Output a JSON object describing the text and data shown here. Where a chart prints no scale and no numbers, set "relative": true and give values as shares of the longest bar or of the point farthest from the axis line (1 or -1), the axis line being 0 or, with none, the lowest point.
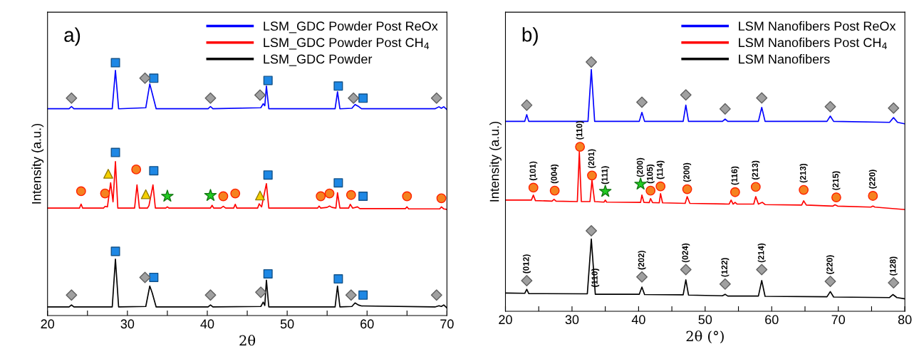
{
  "chart_data": [
    {
      "type": "line",
      "relative": true,
      "xlabel": "2θ",
      "ylabel": "Intensity (a.u.)",
      "annotations": [
        "a)"
      ],
      "legend": "top right",
      "grid": false,
      "tick_labels": "x",
      "xlim": [
        20,
        70
      ],
      "xticks": [
        20,
        {
          "value": 25,
          "label": null
        },
        30,
        {
          "value": 35,
          "label": null
        },
        40,
        {
          "value": 45,
          "label": null
        },
        50,
        {
          "value": 55,
          "label": null
        },
        60,
        {
          "value": 65,
          "label": null
        },
        70
      ],
      "series": [
        {
          "name": "LSM_GDC Powder Post ReOx",
          "color": "#0000ff",
          "x": [
            20,
            22.7,
            23,
            23.3,
            28.1,
            28.5,
            28.9,
            32.3,
            32.8,
            33.1,
            33.6,
            40.1,
            40.4,
            40.7,
            46.7,
            47.0,
            47.2,
            47.4,
            47.7,
            56.0,
            56.3,
            56.6,
            58.1,
            58.5,
            58.9,
            59.3,
            68.5,
            69.0,
            69.3,
            69.6,
            70
          ],
          "values": [
            0.818,
            0.818,
            0.827,
            0.818,
            0.818,
            0.97,
            0.818,
            0.822,
            0.916,
            0.88,
            0.818,
            0.818,
            0.827,
            0.818,
            0.822,
            0.838,
            0.83,
            0.908,
            0.818,
            0.818,
            0.885,
            0.818,
            0.82,
            0.835,
            0.828,
            0.818,
            0.818,
            0.826,
            0.82,
            0.826,
            0.815
          ]
        },
        {
          "name": "LSM_GDC Powder Post CH$_{4}$",
          "color": "#ff0000",
          "x": [
            20,
            24.0,
            24.2,
            24.4,
            27.0,
            27.2,
            27.5,
            27.9,
            28.2,
            28.5,
            28.8,
            30.9,
            31.2,
            31.5,
            32.5,
            32.7,
            33.2,
            33.5,
            34.8,
            35.0,
            35.2,
            40.4,
            40.6,
            40.8,
            41.7,
            42.0,
            42.3,
            43.3,
            43.5,
            43.7,
            46.3,
            46.5,
            46.8,
            47.4,
            47.7,
            53.8,
            54.0,
            54.2,
            55.0,
            55.3,
            55.6,
            56.1,
            56.3,
            56.6,
            57.7,
            57.9,
            58.2,
            58.8,
            59.1,
            64.8,
            65.0,
            65.2,
            69.1,
            69.3,
            69.6,
            70
          ],
          "values": [
            0.425,
            0.425,
            0.441,
            0.425,
            0.425,
            0.432,
            0.43,
            0.525,
            0.45,
            0.609,
            0.425,
            0.425,
            0.517,
            0.425,
            0.425,
            0.435,
            0.517,
            0.425,
            0.425,
            0.43,
            0.425,
            0.425,
            0.436,
            0.425,
            0.425,
            0.432,
            0.425,
            0.425,
            0.44,
            0.425,
            0.425,
            0.442,
            0.43,
            0.522,
            0.425,
            0.425,
            0.433,
            0.425,
            0.428,
            0.433,
            0.428,
            0.425,
            0.486,
            0.425,
            0.425,
            0.44,
            0.425,
            0.43,
            0.423,
            0.423,
            0.43,
            0.422,
            0.422,
            0.43,
            0.422,
            0.42
          ]
        },
        {
          "name": "LSM_GDC Powder",
          "color": "#000000",
          "x": [
            20,
            22.7,
            23,
            23.3,
            28.1,
            28.5,
            28.9,
            32.3,
            32.8,
            33.1,
            33.6,
            40.1,
            40.4,
            40.7,
            46.7,
            47.0,
            47.2,
            47.4,
            47.7,
            56.0,
            56.3,
            56.6,
            58.1,
            58.5,
            58.9,
            59.3,
            68.5,
            69.0,
            69.3,
            69.6,
            70
          ],
          "values": [
            0.034,
            0.034,
            0.042,
            0.034,
            0.034,
            0.223,
            0.034,
            0.036,
            0.117,
            0.09,
            0.034,
            0.034,
            0.042,
            0.034,
            0.036,
            0.053,
            0.04,
            0.14,
            0.034,
            0.034,
            0.117,
            0.034,
            0.036,
            0.05,
            0.042,
            0.038,
            0.034,
            0.039,
            0.036,
            0.042,
            0.03
          ]
        },
        {
          "type": "scatter",
          "marker": "square",
          "color": "#1e88e5",
          "x": [
            28.5,
            33.3,
            47.6,
            56.4,
            59.5,
            28.5,
            33.3,
            47.6,
            56.4,
            59.5,
            28.5,
            33.3,
            47.6,
            56.4,
            59.5
          ],
          "values": [
            1.0,
            0.939,
            0.93,
            0.908,
            0.86,
            0.645,
            0.573,
            0.556,
            0.525,
            0.472,
            0.254,
            0.151,
            0.165,
            0.145,
            0.081
          ]
        },
        {
          "type": "scatter",
          "marker": "diamond",
          "color": "#a0a0a0",
          "x": [
            23,
            32.2,
            40.4,
            46.6,
            58.3,
            68.7,
            23,
            32.2,
            40.4,
            46.7,
            58,
            68.7
          ],
          "values": [
            0.86,
            0.939,
            0.86,
            0.872,
            0.86,
            0.86,
            0.081,
            0.151,
            0.081,
            0.092,
            0.081,
            0.081
          ]
        },
        {
          "type": "scatter",
          "marker": "circle",
          "color": "#f58220",
          "x": [
            24.2,
            27.2,
            31.1,
            42,
            43.5,
            54.2,
            55.3,
            58,
            65,
            69.3
          ],
          "values": [
            0.492,
            0.483,
            0.578,
            0.472,
            0.483,
            0.472,
            0.483,
            0.477,
            0.472,
            0.464
          ]
        },
        {
          "type": "scatter",
          "marker": "triangle",
          "color": "#f5d000",
          "x": [
            27.6,
            32.3,
            46.6
          ],
          "values": [
            0.561,
            0.48,
            0.475
          ]
        },
        {
          "type": "scatter",
          "marker": "star",
          "color": "#22cc22",
          "x": [
            35,
            40.4
          ],
          "values": [
            0.472,
            0.475
          ]
        }
      ]
    },
    {
      "type": "line",
      "relative": true,
      "xlabel": "2θ (°)",
      "ylabel": "Intensity (a.u.)",
      "legend": "top right",
      "grid": false,
      "tick_labels": "x",
      "xlim": [
        20,
        80
      ],
      "xticks": [
        20,
        {
          "value": 25,
          "label": null
        },
        30,
        {
          "value": 35,
          "label": null
        },
        40,
        {
          "value": 45,
          "label": null
        },
        50,
        {
          "value": 55,
          "label": null
        },
        60,
        {
          "value": 65,
          "label": null
        },
        70,
        {
          "value": 75,
          "label": null
        },
        80
      ],
      "annotations": [
        "b)",
        {
          "text": "(101)",
          "x": 24.2,
          "y": 0.496
        },
        {
          "text": "(004)",
          "x": 27.4,
          "y": 0.484
        },
        {
          "text": "(110)",
          "x": 31.2,
          "y": 0.66
        },
        {
          "text": "(201)",
          "x": 33,
          "y": 0.545
        },
        {
          "text": "(111)",
          "x": 35,
          "y": 0.481
        },
        {
          "text": "(200)",
          "x": 40.3,
          "y": 0.51
        },
        {
          "text": "(105)",
          "x": 41.8,
          "y": 0.484
        },
        {
          "text": "(114)",
          "x": 43.3,
          "y": 0.501
        },
        {
          "text": "(200)",
          "x": 47.3,
          "y": 0.49
        },
        {
          "text": "(116)",
          "x": 54.5,
          "y": 0.478
        },
        {
          "text": "(213)",
          "x": 57.6,
          "y": 0.499
        },
        {
          "text": "(213)",
          "x": 64.8,
          "y": 0.487
        },
        {
          "text": "(215)",
          "x": 69.7,
          "y": 0.457
        },
        {
          "text": "(220)",
          "x": 75.2,
          "y": 0.463
        },
        {
          "text": "(012)",
          "x": 23.2,
          "y": 0.123
        },
        {
          "text": "(110)",
          "x": 33.5,
          "y": 0.068
        },
        {
          "text": "(202)",
          "x": 40.5,
          "y": 0.138
        },
        {
          "text": "(024)",
          "x": 47.1,
          "y": 0.167
        },
        {
          "text": "(122)",
          "x": 53,
          "y": 0.109
        },
        {
          "text": "(214)",
          "x": 58.5,
          "y": 0.167
        },
        {
          "text": "(220)",
          "x": 68.8,
          "y": 0.12
        },
        {
          "text": "(128)",
          "x": 78.3,
          "y": 0.114
        }
      ],
      "series": [
        {
          "name": "LSM Nanofibers Post ReOx",
          "color": "#0000ff",
          "x": [
            20,
            22.9,
            23.2,
            23.5,
            32.4,
            32.9,
            33.4,
            40.1,
            40.5,
            40.9,
            46.7,
            47.1,
            47.5,
            52.6,
            53.0,
            53.4,
            58.0,
            58.5,
            59.0,
            68.3,
            68.8,
            69.3,
            77.7,
            78.3,
            78.9,
            80
          ],
          "values": [
            0.762,
            0.762,
            0.789,
            0.762,
            0.762,
            0.97,
            0.762,
            0.762,
            0.798,
            0.762,
            0.762,
            0.827,
            0.762,
            0.762,
            0.771,
            0.762,
            0.762,
            0.818,
            0.762,
            0.762,
            0.783,
            0.762,
            0.758,
            0.777,
            0.758,
            0.752
          ]
        },
        {
          "name": "LSM Nanofibers Post CH$_{4}$",
          "color": "#ff0000",
          "x": [
            20,
            23.9,
            24.2,
            24.5,
            27.0,
            27.3,
            27.6,
            30.8,
            31.1,
            31.4,
            32.7,
            33.0,
            33.4,
            34.8,
            35.0,
            35.2,
            40.3,
            40.5,
            40.8,
            41.6,
            41.8,
            42.1,
            43.1,
            43.3,
            43.6,
            47.0,
            47.3,
            47.7,
            53.6,
            53.9,
            54.2,
            54.5,
            54.8,
            57.3,
            57.6,
            58.0,
            58.6,
            59.0,
            64.5,
            64.8,
            65.2,
            69.2,
            69.5,
            69.9,
            74.9,
            75.2,
            75.5,
            80
          ],
          "values": [
            0.446,
            0.446,
            0.466,
            0.444,
            0.442,
            0.449,
            0.442,
            0.44,
            0.639,
            0.44,
            0.44,
            0.525,
            0.44,
            0.438,
            0.446,
            0.438,
            0.437,
            0.466,
            0.437,
            0.436,
            0.452,
            0.436,
            0.435,
            0.472,
            0.435,
            0.433,
            0.46,
            0.433,
            0.43,
            0.446,
            0.43,
            0.437,
            0.43,
            0.43,
            0.46,
            0.43,
            0.437,
            0.428,
            0.426,
            0.443,
            0.426,
            0.422,
            0.427,
            0.422,
            0.418,
            0.422,
            0.418,
            0.408
          ]
        },
        {
          "name": "LSM Nanofibers",
          "color": "#000000",
          "x": [
            20,
            22.9,
            23.2,
            23.5,
            32.3,
            32.9,
            33.5,
            40.1,
            40.5,
            40.9,
            46.7,
            47.1,
            47.5,
            52.6,
            53.0,
            53.4,
            58.0,
            58.5,
            59.0,
            68.3,
            68.8,
            69.3,
            77.7,
            78.2,
            78.8,
            80
          ],
          "values": [
            0.073,
            0.072,
            0.088,
            0.071,
            0.07,
            0.29,
            0.068,
            0.068,
            0.097,
            0.067,
            0.066,
            0.126,
            0.065,
            0.062,
            0.068,
            0.061,
            0.061,
            0.123,
            0.06,
            0.058,
            0.079,
            0.057,
            0.055,
            0.067,
            0.055,
            0.05
          ]
        },
        {
          "type": "scatter",
          "marker": "diamond",
          "color": "#a0a0a0",
          "x": [
            23.2,
            32.9,
            40.5,
            47.1,
            53,
            58.5,
            68.8,
            78.3,
            23.2,
            32.9,
            40.5,
            47.1,
            53,
            58.5,
            68.8,
            78.3
          ],
          "values": [
            0.827,
            1.0,
            0.839,
            0.868,
            0.812,
            0.856,
            0.821,
            0.815,
            0.123,
            0.323,
            0.138,
            0.167,
            0.109,
            0.167,
            0.12,
            0.114
          ]
        },
        {
          "type": "scatter",
          "marker": "circle",
          "color": "#f58220",
          "x": [
            24.2,
            27.4,
            31.2,
            33,
            41.8,
            43.3,
            47.3,
            54.5,
            57.6,
            64.8,
            69.7,
            75.2
          ],
          "values": [
            0.496,
            0.484,
            0.66,
            0.545,
            0.484,
            0.501,
            0.49,
            0.478,
            0.499,
            0.487,
            0.457,
            0.463
          ]
        },
        {
          "type": "scatter",
          "marker": "star",
          "color": "#22cc22",
          "x": [
            35,
            40.3
          ],
          "values": [
            0.481,
            0.51
          ]
        }
      ]
    }
  ]
}
